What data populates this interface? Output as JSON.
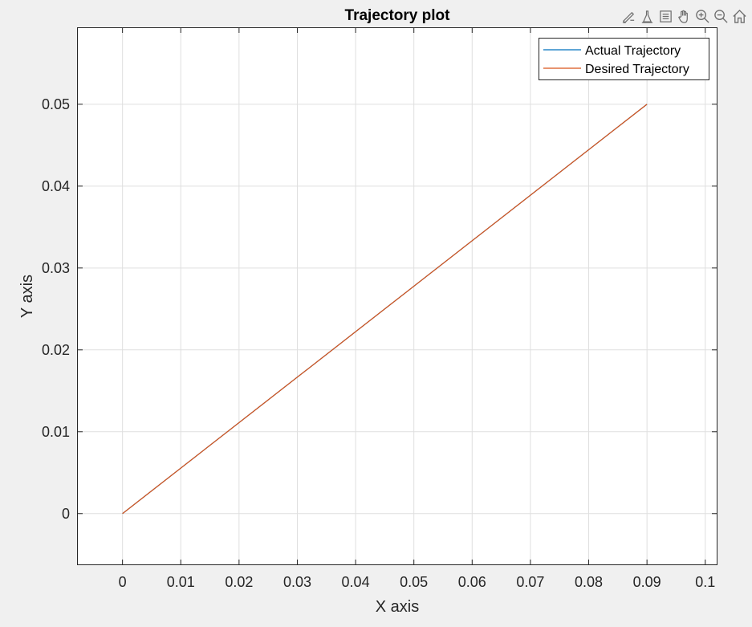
{
  "toolbar": {
    "icons": [
      "brush-icon",
      "data-tips-icon",
      "legend-toggle-icon",
      "pan-hand-icon",
      "zoom-in-icon",
      "zoom-out-icon",
      "home-icon"
    ]
  },
  "colors": {
    "actual": "#0072BD",
    "desired": "#D95319",
    "grid": "#dfdfdf",
    "axes": "#262626",
    "figure_bg": "#f0f0f0",
    "axes_bg": "#ffffff"
  },
  "chart_data": {
    "type": "line",
    "title": "Trajectory plot",
    "xlabel": "X axis",
    "ylabel": "Y axis",
    "xlim": [
      -0.0078,
      0.1021
    ],
    "ylim": [
      -0.0063,
      0.0594
    ],
    "xticks": [
      0,
      0.01,
      0.02,
      0.03,
      0.04,
      0.05,
      0.06,
      0.07,
      0.08,
      0.09,
      0.1
    ],
    "xtick_labels": [
      "0",
      "0.01",
      "0.02",
      "0.03",
      "0.04",
      "0.05",
      "0.06",
      "0.07",
      "0.08",
      "0.09",
      "0.1"
    ],
    "yticks": [
      0,
      0.01,
      0.02,
      0.03,
      0.04,
      0.05
    ],
    "ytick_labels": [
      "0",
      "0.01",
      "0.02",
      "0.03",
      "0.04",
      "0.05"
    ],
    "grid": true,
    "legend_location": "top-right",
    "series": [
      {
        "name": "Actual Trajectory",
        "color": "#0072BD",
        "x": [
          0,
          0.09
        ],
        "y": [
          0,
          0.05
        ]
      },
      {
        "name": "Desired Trajectory",
        "color": "#D95319",
        "x": [
          0,
          0.09
        ],
        "y": [
          0,
          0.05
        ]
      }
    ]
  }
}
